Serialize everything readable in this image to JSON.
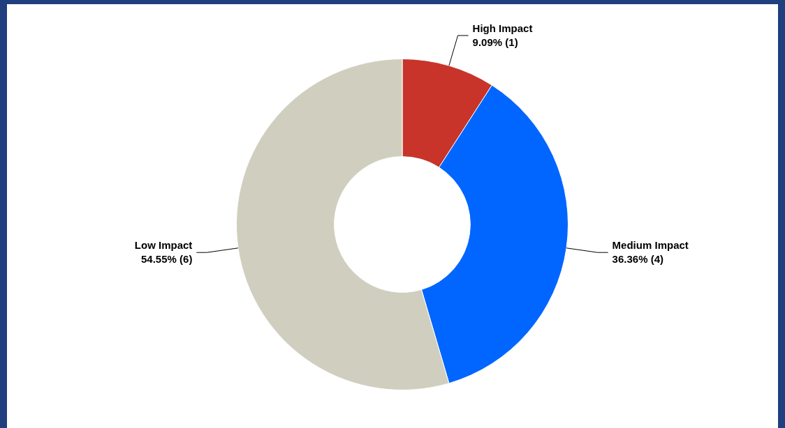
{
  "chart_data": {
    "type": "donut",
    "categories": [
      "High Impact",
      "Medium Impact",
      "Low Impact"
    ],
    "values": [
      1,
      4,
      6
    ],
    "value_labels": [
      "9.09% (1)",
      "36.36% (4)",
      "54.55% (6)"
    ],
    "colors": [
      "#c8342a",
      "#0066ff",
      "#d0cfbf"
    ]
  }
}
